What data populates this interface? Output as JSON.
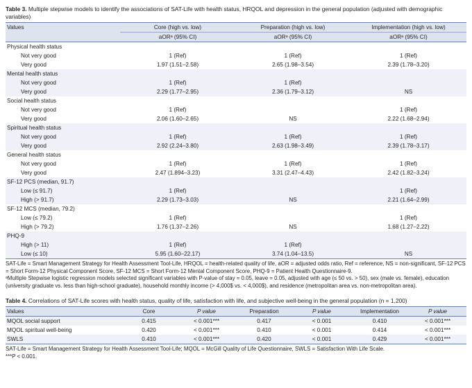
{
  "table3": {
    "label": "Table 3.",
    "caption": "Multiple stepwise models to identify the associations of SAT-Life with health status, HRQOL and depression in the general population (adjusted with demographic variables)",
    "header_values": "Values",
    "groups": [
      "Core (high vs. low)",
      "Preparation (high vs. low)",
      "Implementation (high vs. low)"
    ],
    "subheader": "aORᵃ (95% CI)",
    "sections": [
      {
        "title": "Physical health status",
        "rows": [
          {
            "label": "Not very good",
            "core": "1 (Ref)",
            "prep": "1 (Ref)",
            "impl": "1 (Ref)"
          },
          {
            "label": "Very good",
            "core": "1.97 (1.51–2.58)",
            "prep": "2.65 (1.98–3.54)",
            "impl": "2.39 (1.78–3.20)"
          }
        ]
      },
      {
        "title": "Mental health status",
        "rows": [
          {
            "label": "Not very good",
            "core": "1 (Ref)",
            "prep": "1 (Ref)",
            "impl": ""
          },
          {
            "label": "Very good",
            "core": "2.29 (1.77–2.95)",
            "prep": "2.36 (1.79–3.12)",
            "impl": "NS"
          }
        ]
      },
      {
        "title": "Social health status",
        "rows": [
          {
            "label": "Not very good",
            "core": "1 (Ref)",
            "prep": "",
            "impl": "1 (Ref)"
          },
          {
            "label": "Very good",
            "core": "2.06 (1.60–2.65)",
            "prep": "NS",
            "impl": "2.22 (1.68–2.94)"
          }
        ]
      },
      {
        "title": "Spiritual health status",
        "rows": [
          {
            "label": "Not very good",
            "core": "1 (Ref)",
            "prep": "1 (Ref)",
            "impl": "1 (Ref)"
          },
          {
            "label": "Very good",
            "core": "2.92 (2.24–3.80)",
            "prep": "2.63 (1.98–3.49)",
            "impl": "2.39 (1.78–3.17)"
          }
        ]
      },
      {
        "title": "General health status",
        "rows": [
          {
            "label": "Not very good",
            "core": "1 (Ref)",
            "prep": "1 (Ref)",
            "impl": "1 (Ref)"
          },
          {
            "label": "Very good",
            "core": "2.47 (1.894–3.23)",
            "prep": "3.31 (2.47–4.43)",
            "impl": "2.42 (1.82–3.24)"
          }
        ]
      },
      {
        "title": "SF-12 PCS (median, 91.7)",
        "rows": [
          {
            "label": "Low (≤ 91.7)",
            "core": "1 (Ref)",
            "prep": "",
            "impl": "1 (Ref)"
          },
          {
            "label": "High (> 91.7)",
            "core": "2.29 (1.73–3.03)",
            "prep": "NS",
            "impl": "2.21 (1.64–2.99)"
          }
        ]
      },
      {
        "title": "SF-12 MCS (median, 79.2)",
        "rows": [
          {
            "label": "Low (≤ 79.2)",
            "core": "1 (Ref)",
            "prep": "",
            "impl": "1 (Ref)"
          },
          {
            "label": "High (> 79.2)",
            "core": "1.76 (1.37–2.26)",
            "prep": "NS",
            "impl": "1.68 (1.27–2.22)"
          }
        ]
      },
      {
        "title": "PHQ-9",
        "rows": [
          {
            "label": "High (> 11)",
            "core": "1 (Ref)",
            "prep": "1 (Ref)",
            "impl": ""
          },
          {
            "label": "Low (≤ 10)",
            "core": "5.95 (1.60–22.17)",
            "prep": "3.74 (1.04–13.5)",
            "impl": "NS"
          }
        ]
      }
    ],
    "footnotes": [
      "SAT-Life = Smart Management Strategy for Health Assessment Tool-Life, HRQOL = health-related quality of life, aOR = adjusted odds ratio, Ref = reference, NS = non-significant, SF-12 PCS = Short Form-12 Physical Component Score, SF-12 MCS = Short Form-12 Mental Component Score, PHQ-9 = Patient Health Questionnaire-9.",
      "ᵃMultiple Stepwise logistic regression models selected significant variables with P-value of stay = 0.05, leave = 0.05, adjusted with age (≤ 50 vs. > 50), sex (male vs. female), education (university graduate vs. less than high-school graduate), household monthly income (> 4,000$ vs. < 4,000$), and residence (metropolitan area vs. non-metropolitan area)."
    ]
  },
  "table4": {
    "label": "Table 4.",
    "caption": "Correlations of SAT-Life scores with health status, quality of life, satisfaction with life, and subjective well-being in the general population (n = 1,200)",
    "headers": [
      "Values",
      "Core",
      "P value",
      "Preparation",
      "P value",
      "Implementation",
      "P value"
    ],
    "rows": [
      [
        "MQOL social support",
        "0.415",
        "< 0.001***",
        "0.417",
        "< 0.001",
        "0.410",
        "< 0.001***"
      ],
      [
        "MQOL spiritual well-being",
        "0.420",
        "< 0.001***",
        "0.410",
        "< 0.001",
        "0.414",
        "< 0.001***"
      ],
      [
        "SWLS",
        "0.410",
        "< 0.001***",
        "0.420",
        "< 0.001",
        "0.429",
        "< 0.001***"
      ]
    ],
    "footnotes": [
      "SAT-Life = Smart Management Strategy for Health Assessment Tool-Life; MQOL = McGill Quality of Life Questionnaire, SWLS = Satisfaction With Life Scale.",
      "***P < 0.001."
    ]
  }
}
